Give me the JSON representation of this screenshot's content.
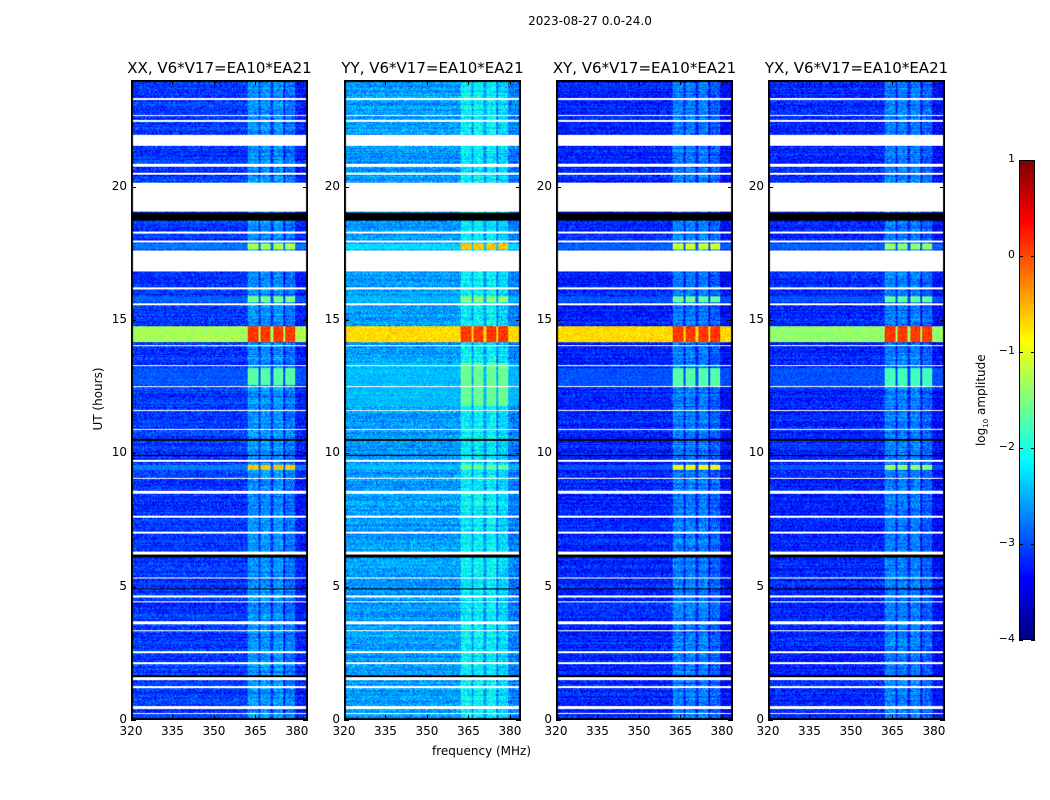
{
  "chart_data": {
    "type": "heatmap",
    "title": "2023-08-27 0.0-24.0",
    "xlabel": "frequency (MHz)",
    "ylabel": "UT (hours)",
    "xlim": [
      320,
      384
    ],
    "ylim": [
      0,
      24
    ],
    "xticks": [
      "320",
      "335",
      "350",
      "365",
      "380"
    ],
    "yticks": [
      "0",
      "5",
      "10",
      "15",
      "20"
    ],
    "colorbar": {
      "label": "log10 amplitude",
      "label_main": "log",
      "label_sub": "10",
      "label_tail": " amplitude",
      "range": [
        -4,
        1
      ],
      "ticks": [
        "1",
        "0",
        "−1",
        "−2",
        "−3",
        "−4"
      ],
      "colormap": "jet"
    },
    "rfi_channels_mhz": [
      [
        362,
        366
      ],
      [
        367,
        370.5
      ],
      [
        371.5,
        375
      ],
      [
        376,
        379.5
      ]
    ],
    "flagged_white_hours": [
      [
        21.6,
        22.0
      ],
      [
        19.1,
        20.2
      ],
      [
        16.85,
        17.65
      ],
      [
        23.3,
        23.38
      ],
      [
        22.5,
        22.55
      ],
      [
        22.7,
        22.75
      ],
      [
        20.8,
        20.9
      ],
      [
        20.5,
        20.55
      ],
      [
        18.3,
        18.35
      ],
      [
        17.95,
        18.0
      ],
      [
        16.2,
        16.25
      ],
      [
        15.6,
        15.65
      ],
      [
        14.05,
        14.1
      ],
      [
        13.3,
        13.35
      ],
      [
        12.5,
        12.55
      ],
      [
        11.6,
        11.65
      ],
      [
        10.9,
        10.95
      ],
      [
        9.7,
        9.75
      ],
      [
        9.05,
        9.1
      ],
      [
        8.5,
        8.6
      ],
      [
        7.6,
        7.65
      ],
      [
        7.0,
        7.05
      ],
      [
        6.2,
        6.3
      ],
      [
        5.3,
        5.35
      ],
      [
        4.6,
        4.65
      ],
      [
        4.4,
        4.45
      ],
      [
        3.6,
        3.7
      ],
      [
        3.3,
        3.35
      ],
      [
        2.5,
        2.55
      ],
      [
        2.1,
        2.15
      ],
      [
        1.5,
        1.6
      ],
      [
        1.2,
        1.25
      ],
      [
        0.4,
        0.5
      ],
      [
        0.2,
        0.25
      ]
    ],
    "flagged_black_hours": [
      [
        18.78,
        19.08
      ],
      [
        10.5,
        10.55
      ],
      [
        9.9,
        9.95
      ],
      [
        6.1,
        6.2
      ],
      [
        4.9,
        4.95
      ],
      [
        1.6,
        1.65
      ]
    ],
    "panels": [
      {
        "title": "XX, V6*V17=EA10*EA21",
        "base": -3.1,
        "events": [
          {
            "hours": [
              14.2,
              14.8
            ],
            "rfi_level": 0.1,
            "broadband": -1.3
          },
          {
            "hours": [
              9.4,
              9.6
            ],
            "rfi_level": -0.6,
            "broadband": -2.8
          },
          {
            "hours": [
              17.7,
              17.9
            ],
            "rfi_level": -1.3,
            "broadband": -2.8
          },
          {
            "hours": [
              15.7,
              15.9
            ],
            "rfi_level": -1.5,
            "broadband": -3.0
          },
          {
            "hours": [
              12.6,
              13.2
            ],
            "rfi_level": -1.7,
            "broadband": -3.0
          }
        ]
      },
      {
        "title": "YY, V6*V17=EA10*EA21",
        "base": -2.6,
        "events": [
          {
            "hours": [
              14.2,
              14.8
            ],
            "rfi_level": 0.1,
            "broadband": -0.7
          },
          {
            "hours": [
              9.4,
              9.6
            ],
            "rfi_level": -1.6,
            "broadband": -2.5
          },
          {
            "hours": [
              17.7,
              17.9
            ],
            "rfi_level": -0.6,
            "broadband": -2.3
          },
          {
            "hours": [
              15.7,
              15.9
            ],
            "rfi_level": -1.4,
            "broadband": -2.5
          },
          {
            "hours": [
              11.8,
              13.4
            ],
            "rfi_level": -1.6,
            "broadband": -2.5
          }
        ]
      },
      {
        "title": "XY, V6*V17=EA10*EA21",
        "base": -3.2,
        "events": [
          {
            "hours": [
              14.2,
              14.8
            ],
            "rfi_level": 0.1,
            "broadband": -0.7
          },
          {
            "hours": [
              9.4,
              9.6
            ],
            "rfi_level": -0.9,
            "broadband": -3.0
          },
          {
            "hours": [
              17.7,
              17.9
            ],
            "rfi_level": -1.1,
            "broadband": -2.9
          },
          {
            "hours": [
              15.7,
              15.9
            ],
            "rfi_level": -1.6,
            "broadband": -3.0
          },
          {
            "hours": [
              12.5,
              13.2
            ],
            "rfi_level": -1.7,
            "broadband": -3.0
          }
        ]
      },
      {
        "title": "YX, V6*V17=EA10*EA21",
        "base": -3.2,
        "events": [
          {
            "hours": [
              14.2,
              14.8
            ],
            "rfi_level": 0.1,
            "broadband": -1.4
          },
          {
            "hours": [
              9.4,
              9.6
            ],
            "rfi_level": -1.4,
            "broadband": -3.0
          },
          {
            "hours": [
              17.7,
              17.9
            ],
            "rfi_level": -1.4,
            "broadband": -2.9
          },
          {
            "hours": [
              15.7,
              15.9
            ],
            "rfi_level": -1.6,
            "broadband": -3.0
          },
          {
            "hours": [
              12.5,
              13.2
            ],
            "rfi_level": -1.8,
            "broadband": -3.0
          }
        ]
      }
    ]
  }
}
